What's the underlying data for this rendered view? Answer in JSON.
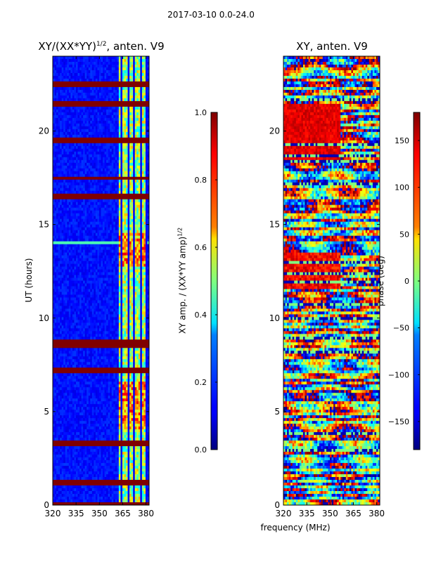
{
  "figure": {
    "suptitle": "2017-03-10 0.0-24.0",
    "shared_xlabel": "frequency (MHz)"
  },
  "chart_data": [
    {
      "type": "heatmap",
      "title_prefix": "XY/(XX*YY)",
      "title_exponent": "1/2",
      "title_suffix": ", anten. V9",
      "xlabel": "",
      "ylabel": "UT (hours)",
      "xlim": [
        320,
        382
      ],
      "ylim": [
        0,
        24
      ],
      "xticks": [
        "320",
        "335",
        "350",
        "365",
        "380"
      ],
      "xtick_values": [
        320,
        335,
        350,
        365,
        380
      ],
      "yticks": [
        "0",
        "5",
        "10",
        "15",
        "20"
      ],
      "ytick_values": [
        0,
        5,
        10,
        15,
        20
      ],
      "colorbar": {
        "label_prefix": "XY amp. / (XX*YY amp)",
        "label_exponent": "1/2",
        "range": [
          0.0,
          1.0
        ],
        "ticks": [
          "0.0",
          "0.2",
          "0.4",
          "0.6",
          "0.8",
          "1.0"
        ],
        "tick_values": [
          0.0,
          0.2,
          0.4,
          0.6,
          0.8,
          1.0
        ],
        "colormap": "jet"
      },
      "flagged_rows_ut": [
        0.1,
        1.1,
        1.2,
        3.3,
        7.1,
        7.2,
        8.5,
        8.6,
        8.7,
        16.5,
        17.5,
        19.5,
        21.4,
        21.5,
        22.5
      ]
    },
    {
      "type": "heatmap",
      "title": "XY, anten. V9",
      "xlabel": "frequency (MHz)",
      "ylabel": "",
      "xlim": [
        320,
        382
      ],
      "ylim": [
        0,
        24
      ],
      "xticks": [
        "320",
        "335",
        "350",
        "365",
        "380"
      ],
      "xtick_values": [
        320,
        335,
        350,
        365,
        380
      ],
      "yticks": [
        "0",
        "5",
        "10",
        "15",
        "20"
      ],
      "ytick_values": [
        0,
        5,
        10,
        15,
        20
      ],
      "colorbar": {
        "label": "phase (deg)",
        "range": [
          -180,
          180
        ],
        "ticks": [
          "−150",
          "−100",
          "−50",
          "0",
          "50",
          "100",
          "150"
        ],
        "tick_values": [
          -150,
          -100,
          -50,
          0,
          50,
          100,
          150
        ],
        "colormap": "jet"
      }
    }
  ]
}
